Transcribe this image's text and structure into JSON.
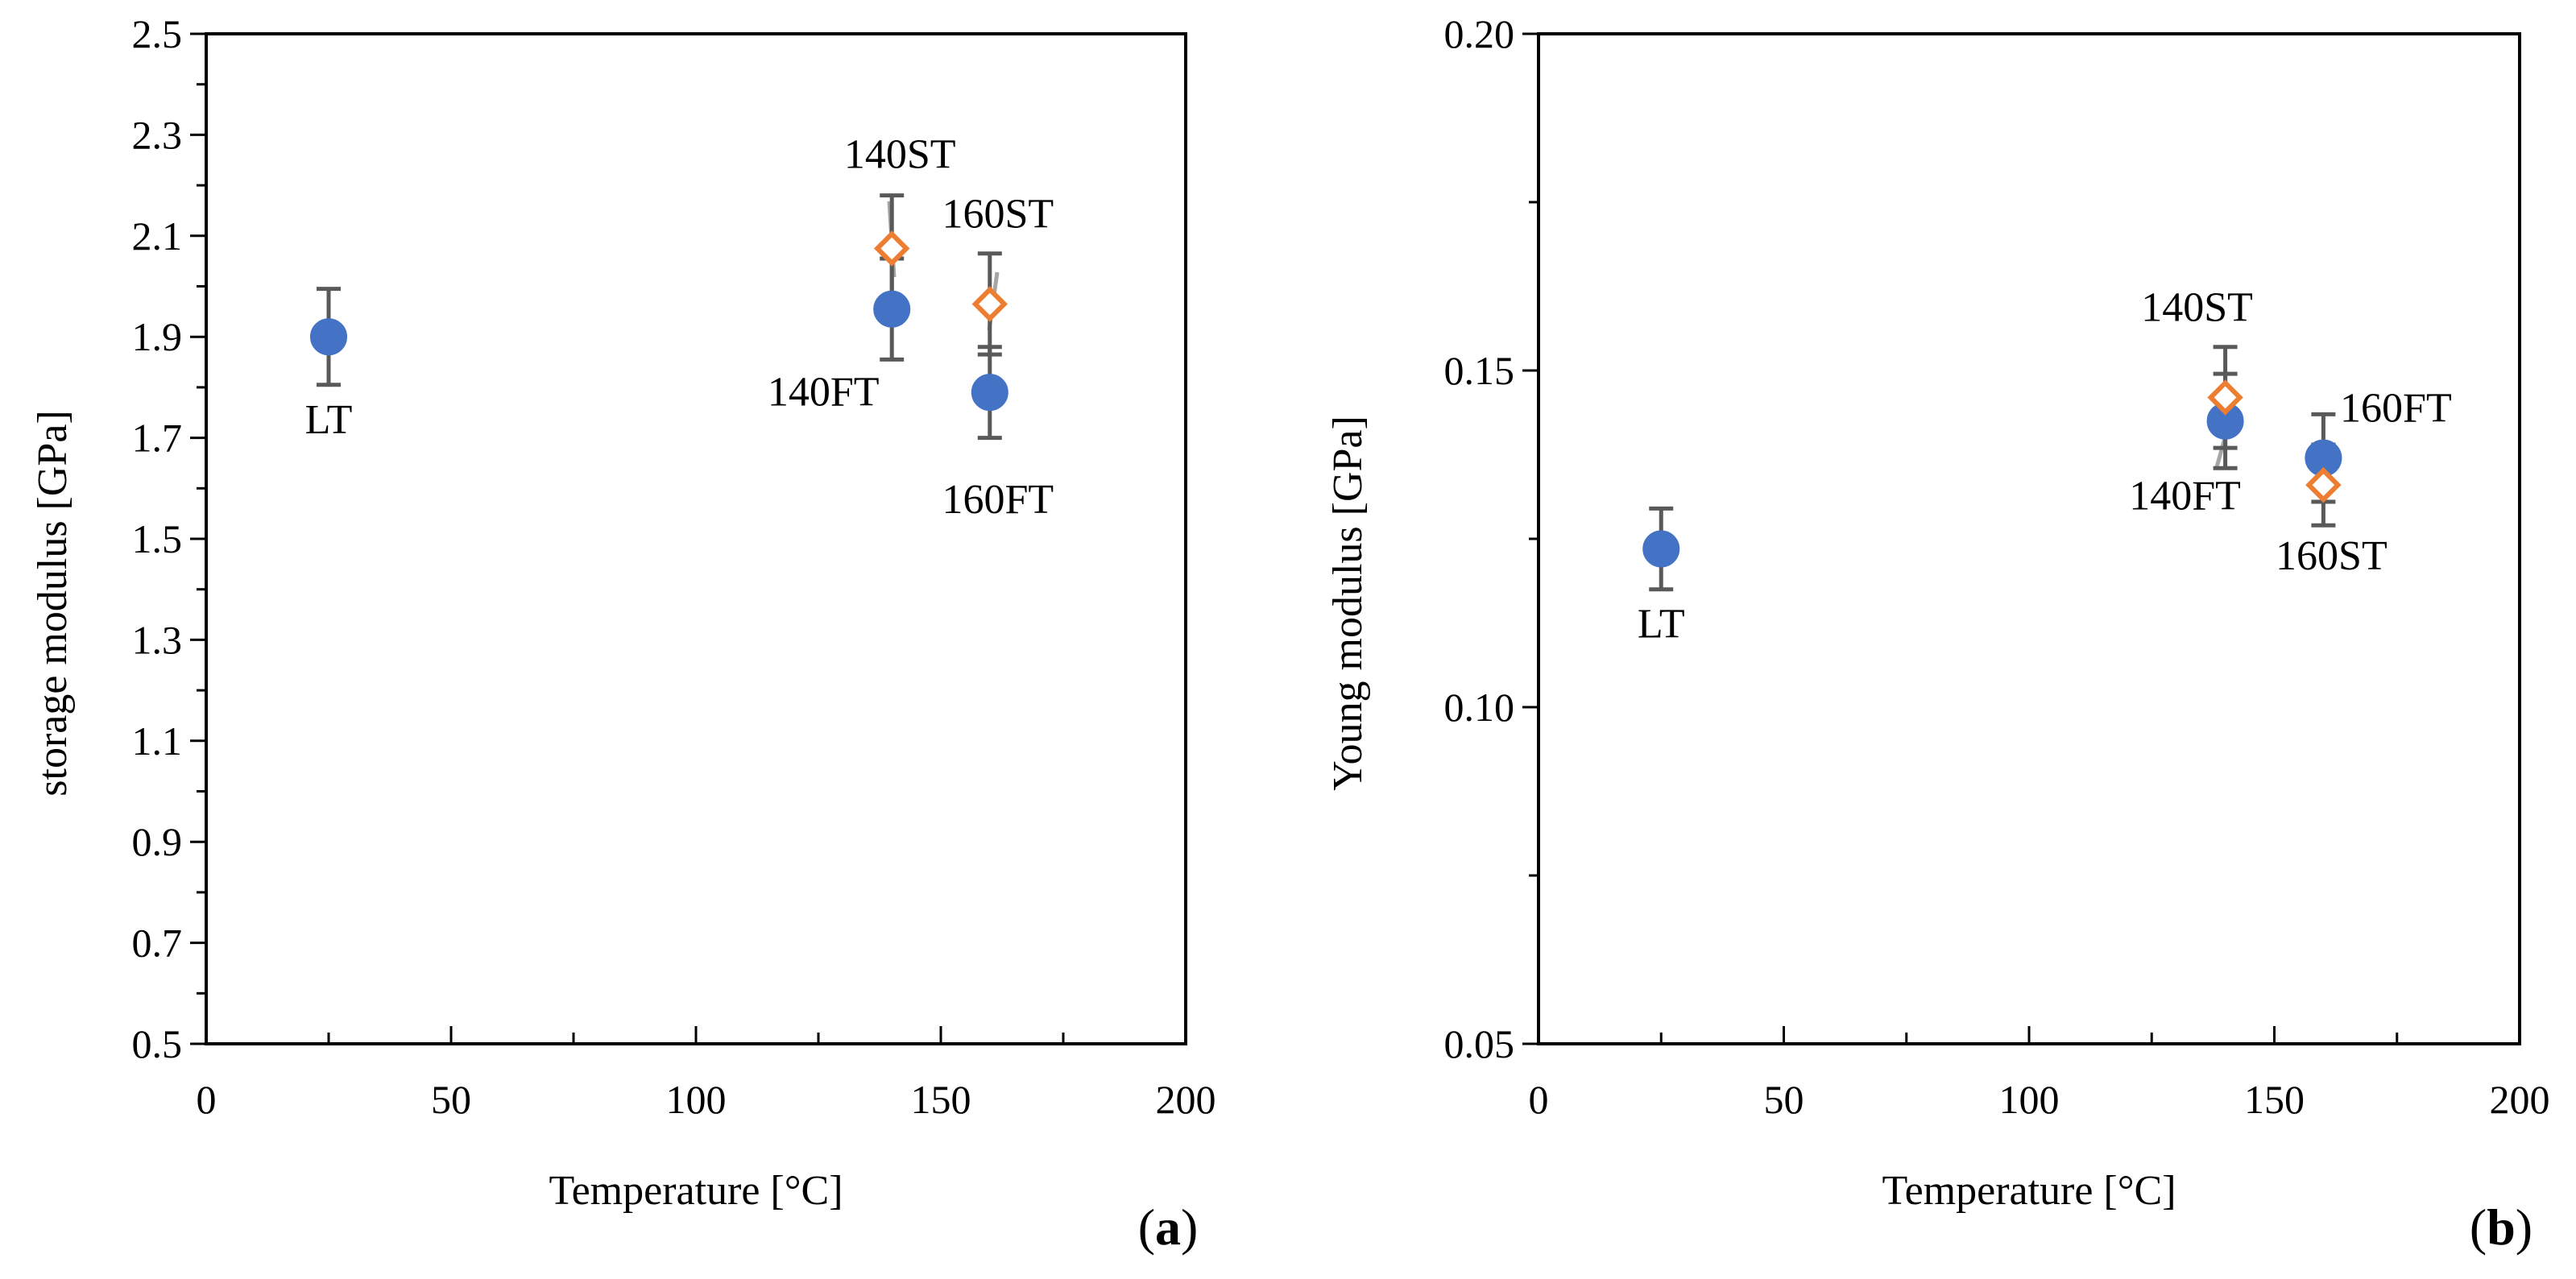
{
  "chart_data": [
    {
      "type": "scatter",
      "panel_label": "a",
      "xlabel": "Temperature [°C]",
      "ylabel": "storage modulus [GPa]",
      "xlim": [
        0,
        200
      ],
      "ylim": [
        0.5,
        2.5
      ],
      "xticks": [
        0,
        50,
        100,
        150,
        200
      ],
      "yticks": [
        0.5,
        0.7,
        0.9,
        1.1,
        1.3,
        1.5,
        1.7,
        1.9,
        2.1,
        2.3,
        2.5
      ],
      "xtick_labels": [
        "0",
        "50",
        "100",
        "150",
        "200"
      ],
      "ytick_labels": [
        "0.5",
        "0.7",
        "0.9",
        "1.1",
        "1.3",
        "1.5",
        "1.7",
        "1.9",
        "2.1",
        "2.3",
        "2.5"
      ],
      "x_minor_step": 25,
      "y_minor_step": 0.1,
      "grid": false,
      "series": [
        {
          "name": "FT",
          "marker": "circle",
          "color": "#4472C4",
          "points": [
            {
              "x": 25,
              "y": 1.9,
              "err": 0.095,
              "label": "LT",
              "label_pos": "below"
            },
            {
              "x": 140,
              "y": 1.955,
              "err": 0.1,
              "label": "140FT",
              "label_pos": "below-left"
            },
            {
              "x": 160,
              "y": 1.79,
              "err": 0.09,
              "label": "160FT",
              "label_pos": "below"
            }
          ]
        },
        {
          "name": "ST",
          "marker": "diamond",
          "color": "#ED7D31",
          "points": [
            {
              "x": 140,
              "y": 2.075,
              "err": 0.105,
              "label": "140ST",
              "label_pos": "above-left",
              "leader": true
            },
            {
              "x": 160,
              "y": 1.965,
              "err": 0.1,
              "label": "160ST",
              "label_pos": "above",
              "leader": true
            }
          ]
        }
      ]
    },
    {
      "type": "scatter",
      "panel_label": "b",
      "xlabel": "Temperature [°C]",
      "ylabel": "Young modulus [GPa]",
      "xlim": [
        0,
        200
      ],
      "ylim": [
        0.05,
        0.2
      ],
      "xticks": [
        0,
        50,
        100,
        150,
        200
      ],
      "yticks": [
        0.05,
        0.1,
        0.15,
        0.2
      ],
      "xtick_labels": [
        "0",
        "50",
        "100",
        "150",
        "200"
      ],
      "ytick_labels": [
        "0.05",
        "0.10",
        "0.15",
        "0.20"
      ],
      "x_minor_step": 25,
      "y_minor_step": 0.025,
      "grid": false,
      "series": [
        {
          "name": "FT",
          "marker": "circle",
          "color": "#4472C4",
          "points": [
            {
              "x": 25,
              "y": 0.1235,
              "err": 0.006,
              "label": "LT",
              "label_pos": "below"
            },
            {
              "x": 140,
              "y": 0.1425,
              "err": 0.007,
              "label": "140FT",
              "label_pos": "below-left",
              "leader": true
            },
            {
              "x": 160,
              "y": 0.137,
              "err": 0.0065,
              "label": "160FT",
              "label_pos": "above-right"
            }
          ]
        },
        {
          "name": "ST",
          "marker": "diamond",
          "color": "#ED7D31",
          "points": [
            {
              "x": 140,
              "y": 0.146,
              "err": 0.0075,
              "label": "140ST",
              "label_pos": "above-left"
            },
            {
              "x": 160,
              "y": 0.133,
              "err": 0.006,
              "label": "160ST",
              "label_pos": "below"
            }
          ]
        }
      ]
    }
  ]
}
